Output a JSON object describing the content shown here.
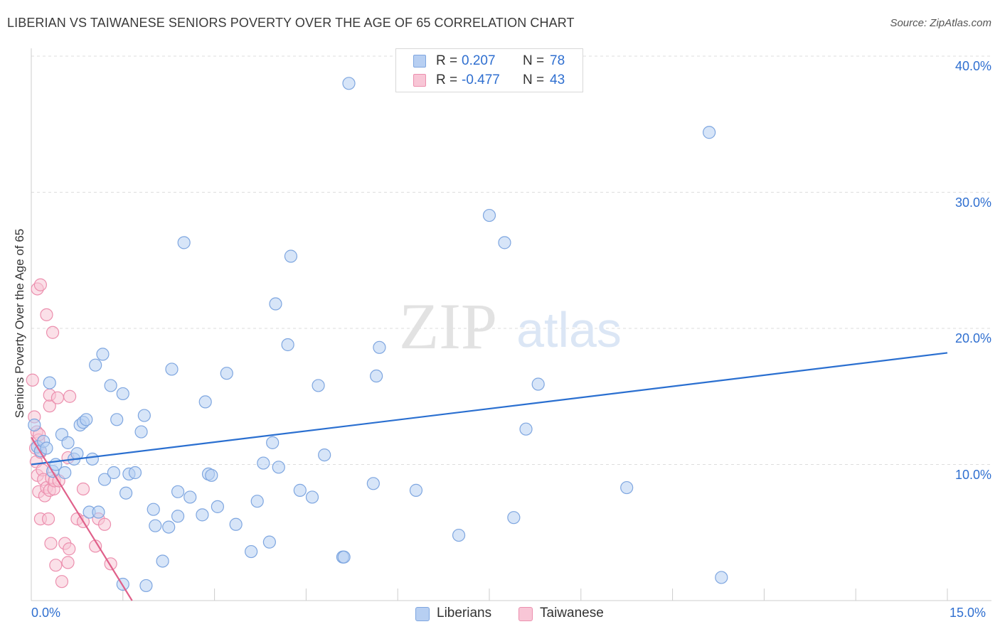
{
  "header": {
    "title": "LIBERIAN VS TAIWANESE SENIORS POVERTY OVER THE AGE OF 65 CORRELATION CHART",
    "source": "Source: ZipAtlas.com"
  },
  "watermark": {
    "part1": "ZIP",
    "part2": "atlas"
  },
  "legend": {
    "rows": [
      {
        "r_label": "R =",
        "r_value": "0.207",
        "n_label": "N =",
        "n_value": "78",
        "color": "#8fb5ea"
      },
      {
        "r_label": "R =",
        "r_value": "-0.477",
        "n_label": "N =",
        "n_value": "43",
        "color": "#f09ab6"
      }
    ]
  },
  "colors": {
    "blue_fill": "#b7cff2",
    "blue_stroke": "#7ea6e0",
    "blue_line": "#2a6fd0",
    "pink_fill": "#f8c6d6",
    "pink_stroke": "#ec8fae",
    "pink_line": "#e0608a",
    "axis_text": "#2f6fd0",
    "grid": "#dddddd"
  },
  "chart_data": {
    "type": "scatter",
    "title": "LIBERIAN VS TAIWANESE SENIORS POVERTY OVER THE AGE OF 65 CORRELATION CHART",
    "xlabel": "",
    "ylabel": "Seniors Poverty Over the Age of 65",
    "xlim": [
      0,
      15
    ],
    "ylim": [
      0,
      41
    ],
    "x_tick_labels": [
      "0.0%",
      "15.0%"
    ],
    "y_ticks": [
      10,
      20,
      30,
      40
    ],
    "y_tick_labels": [
      "10.0%",
      "20.0%",
      "30.0%",
      "40.0%"
    ],
    "grid": true,
    "legend_position": "bottom-center",
    "series": [
      {
        "name": "Liberians",
        "r": 0.207,
        "n": 78,
        "trend": {
          "x": [
            0,
            15
          ],
          "y": [
            10.0,
            18.2
          ]
        },
        "points": [
          [
            0.05,
            12.9
          ],
          [
            0.1,
            11.3
          ],
          [
            0.15,
            11.0
          ],
          [
            0.2,
            11.7
          ],
          [
            0.25,
            11.2
          ],
          [
            0.3,
            16.0
          ],
          [
            0.35,
            9.5
          ],
          [
            0.4,
            10.0
          ],
          [
            0.5,
            12.2
          ],
          [
            0.55,
            9.4
          ],
          [
            0.6,
            11.6
          ],
          [
            0.7,
            10.4
          ],
          [
            0.75,
            10.8
          ],
          [
            0.8,
            12.9
          ],
          [
            0.85,
            13.1
          ],
          [
            0.9,
            13.3
          ],
          [
            0.95,
            6.5
          ],
          [
            1.0,
            10.4
          ],
          [
            1.05,
            17.3
          ],
          [
            1.1,
            6.5
          ],
          [
            1.17,
            18.1
          ],
          [
            1.2,
            8.9
          ],
          [
            1.3,
            15.8
          ],
          [
            1.35,
            9.4
          ],
          [
            1.4,
            13.3
          ],
          [
            1.5,
            1.2
          ],
          [
            1.5,
            15.2
          ],
          [
            1.55,
            7.9
          ],
          [
            1.6,
            9.3
          ],
          [
            1.7,
            9.4
          ],
          [
            1.8,
            12.4
          ],
          [
            1.85,
            13.6
          ],
          [
            1.88,
            1.1
          ],
          [
            2.0,
            6.7
          ],
          [
            2.03,
            5.5
          ],
          [
            2.15,
            2.9
          ],
          [
            2.25,
            5.4
          ],
          [
            2.3,
            17.0
          ],
          [
            2.4,
            8.0
          ],
          [
            2.4,
            6.2
          ],
          [
            2.5,
            26.3
          ],
          [
            2.6,
            7.6
          ],
          [
            2.8,
            6.3
          ],
          [
            2.85,
            14.6
          ],
          [
            2.9,
            9.3
          ],
          [
            2.95,
            9.2
          ],
          [
            3.05,
            6.9
          ],
          [
            3.2,
            16.7
          ],
          [
            3.35,
            5.6
          ],
          [
            3.6,
            3.6
          ],
          [
            3.7,
            7.3
          ],
          [
            3.8,
            10.1
          ],
          [
            3.9,
            4.3
          ],
          [
            3.95,
            11.6
          ],
          [
            4.0,
            21.8
          ],
          [
            4.05,
            9.8
          ],
          [
            4.2,
            18.8
          ],
          [
            4.25,
            25.3
          ],
          [
            4.4,
            8.1
          ],
          [
            4.6,
            7.6
          ],
          [
            4.7,
            15.8
          ],
          [
            4.8,
            10.7
          ],
          [
            5.1,
            3.2
          ],
          [
            5.12,
            3.2
          ],
          [
            5.2,
            38.0
          ],
          [
            5.6,
            8.6
          ],
          [
            5.65,
            16.5
          ],
          [
            5.7,
            18.6
          ],
          [
            6.3,
            8.1
          ],
          [
            7.0,
            4.8
          ],
          [
            7.5,
            28.3
          ],
          [
            7.75,
            26.3
          ],
          [
            7.9,
            6.1
          ],
          [
            8.1,
            12.6
          ],
          [
            8.3,
            15.9
          ],
          [
            9.75,
            8.3
          ],
          [
            11.1,
            34.4
          ],
          [
            11.3,
            1.7
          ]
        ]
      },
      {
        "name": "Taiwanese",
        "r": -0.477,
        "n": 43,
        "trend": {
          "x": [
            0,
            1.65
          ],
          "y": [
            12.0,
            0.0
          ]
        },
        "points": [
          [
            0.02,
            16.2
          ],
          [
            0.05,
            13.5
          ],
          [
            0.07,
            11.2
          ],
          [
            0.08,
            10.2
          ],
          [
            0.09,
            12.4
          ],
          [
            0.1,
            22.9
          ],
          [
            0.1,
            9.2
          ],
          [
            0.12,
            11.8
          ],
          [
            0.12,
            8.0
          ],
          [
            0.13,
            12.2
          ],
          [
            0.15,
            6.0
          ],
          [
            0.15,
            10.9
          ],
          [
            0.15,
            23.2
          ],
          [
            0.18,
            9.6
          ],
          [
            0.2,
            8.9
          ],
          [
            0.22,
            7.7
          ],
          [
            0.25,
            21.0
          ],
          [
            0.25,
            8.3
          ],
          [
            0.28,
            6.0
          ],
          [
            0.3,
            8.1
          ],
          [
            0.3,
            14.3
          ],
          [
            0.3,
            15.1
          ],
          [
            0.32,
            4.2
          ],
          [
            0.33,
            9.0
          ],
          [
            0.35,
            19.7
          ],
          [
            0.37,
            8.2
          ],
          [
            0.38,
            8.8
          ],
          [
            0.4,
            2.6
          ],
          [
            0.43,
            14.9
          ],
          [
            0.45,
            8.8
          ],
          [
            0.5,
            1.4
          ],
          [
            0.55,
            4.2
          ],
          [
            0.6,
            10.5
          ],
          [
            0.6,
            2.8
          ],
          [
            0.62,
            3.8
          ],
          [
            0.63,
            15.0
          ],
          [
            0.75,
            6.0
          ],
          [
            0.85,
            5.8
          ],
          [
            0.85,
            8.2
          ],
          [
            1.05,
            4.0
          ],
          [
            1.1,
            6.0
          ],
          [
            1.2,
            5.6
          ],
          [
            1.3,
            2.7
          ]
        ]
      }
    ]
  },
  "bottom_legend": {
    "items": [
      {
        "label": "Liberians"
      },
      {
        "label": "Taiwanese"
      }
    ]
  }
}
